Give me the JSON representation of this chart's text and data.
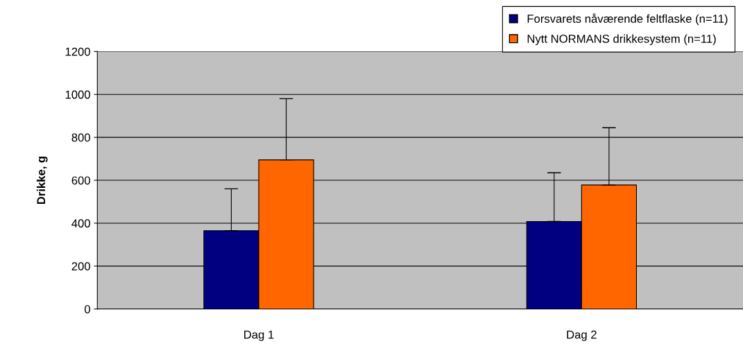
{
  "chart_data": {
    "type": "bar",
    "ylabel": "Drikke, g",
    "categories": [
      "Dag 1",
      "Dag 2"
    ],
    "series": [
      {
        "name": "Forsvarets nåværende feltflaske (n=11)",
        "color": "#000080",
        "values": [
          365,
          408
        ],
        "errors": [
          [
            365,
            560
          ],
          [
            408,
            635
          ]
        ]
      },
      {
        "name": "Nytt NORMANS drikkesystem (n=11)",
        "color": "#ff6600",
        "values": [
          695,
          578
        ],
        "errors": [
          [
            695,
            980
          ],
          [
            578,
            845
          ]
        ]
      }
    ],
    "ylim": [
      0,
      1200
    ],
    "yticks": [
      0,
      200,
      400,
      600,
      800,
      1000,
      1200
    ],
    "grid": "y",
    "legend": "top right"
  }
}
